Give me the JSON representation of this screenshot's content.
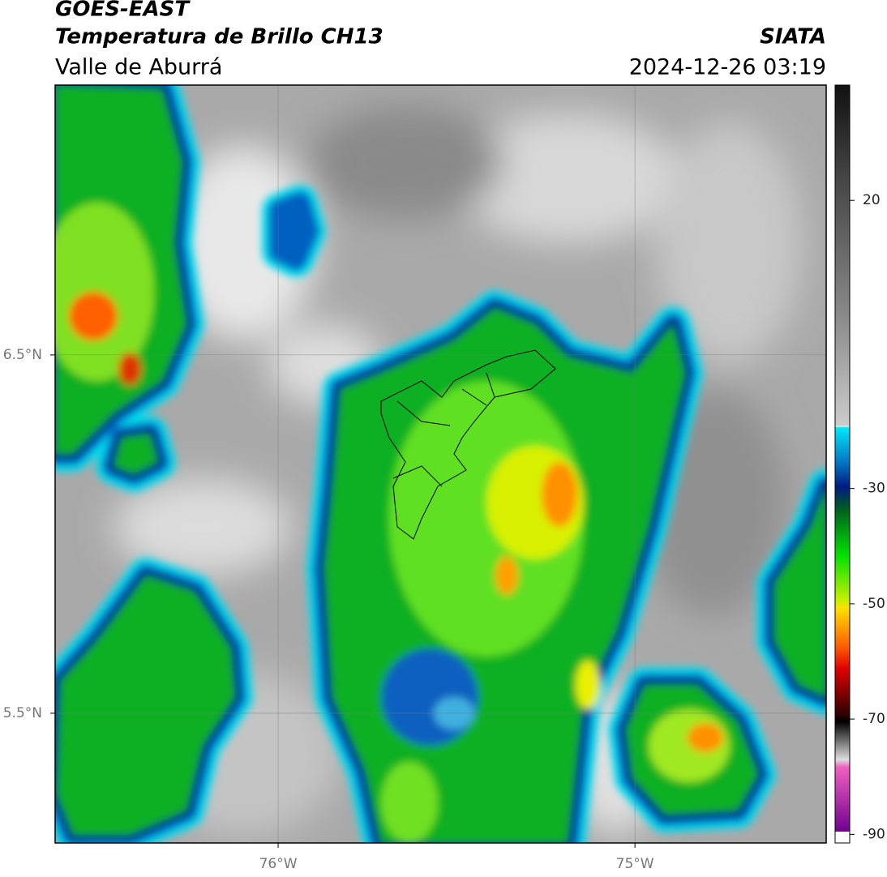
{
  "header": {
    "title": "GOES-EAST",
    "subtitle": "Temperatura de Brillo CH13",
    "region": "Valle de Aburrá",
    "source": "SIATA",
    "datetime": "2024-12-26 03:19"
  },
  "map": {
    "xlim": [
      -76.625,
      -74.464
    ],
    "ylim": [
      5.138,
      7.253
    ],
    "xticks": [
      {
        "value": -76,
        "label": "76°W"
      },
      {
        "value": -75,
        "label": "75°W"
      }
    ],
    "yticks": [
      {
        "value": 6.5,
        "label": "6.5°N"
      },
      {
        "value": 5.5,
        "label": "5.5°N"
      }
    ],
    "grid": true,
    "colorbar": {
      "lim": [
        -91.5,
        40
      ],
      "ticks": [
        20,
        -30,
        -50,
        -70,
        -90
      ]
    }
  }
}
